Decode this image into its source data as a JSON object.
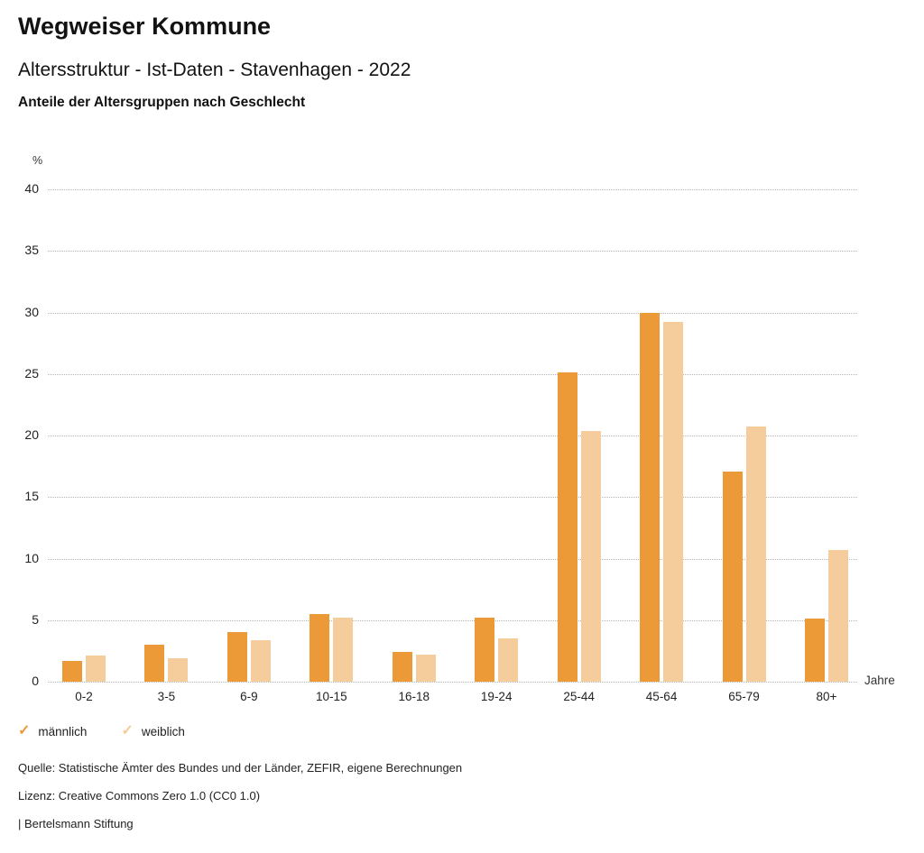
{
  "header": {
    "title": "Wegweiser Kommune",
    "subtitle": "Altersstruktur - Ist-Daten - Stavenhagen - 2022",
    "chart_subtitle": "Anteile der Altersgruppen nach Geschlecht"
  },
  "chart_data": {
    "type": "bar",
    "title": "Anteile der Altersgruppen nach Geschlecht",
    "categories": [
      "0-2",
      "3-5",
      "6-9",
      "10-15",
      "16-18",
      "19-24",
      "25-44",
      "45-64",
      "65-79",
      "80+"
    ],
    "series": [
      {
        "name": "männlich",
        "color": "#EC9A38",
        "values": [
          1.7,
          3.0,
          4.0,
          5.5,
          2.4,
          5.2,
          25.1,
          30.0,
          17.1,
          5.1
        ]
      },
      {
        "name": "weiblich",
        "color": "#F5CD9D",
        "values": [
          2.1,
          1.9,
          3.4,
          5.2,
          2.2,
          3.5,
          20.4,
          29.2,
          20.7,
          10.7
        ]
      }
    ],
    "xlabel": "Jahre",
    "ylabel": "%",
    "ylim": [
      0,
      40
    ],
    "yticks": [
      0,
      5,
      10,
      15,
      20,
      25,
      30,
      35,
      40
    ],
    "grid": "horizontal-dotted",
    "legend_position": "bottom-left"
  },
  "chart": {
    "y_unit": "%",
    "x_unit": "Jahre"
  },
  "legend": {
    "check_icon": "✓",
    "items": [
      {
        "label": "männlich",
        "color": "#EC9A38"
      },
      {
        "label": "weiblich",
        "color": "#F5CD9D"
      }
    ]
  },
  "footer": {
    "source": "Quelle: Statistische Ämter des Bundes und der Länder, ZEFIR, eigene Berechnungen",
    "license": "Lizenz: Creative Commons Zero 1.0 (CC0 1.0)",
    "attribution": "| Bertelsmann Stiftung"
  }
}
